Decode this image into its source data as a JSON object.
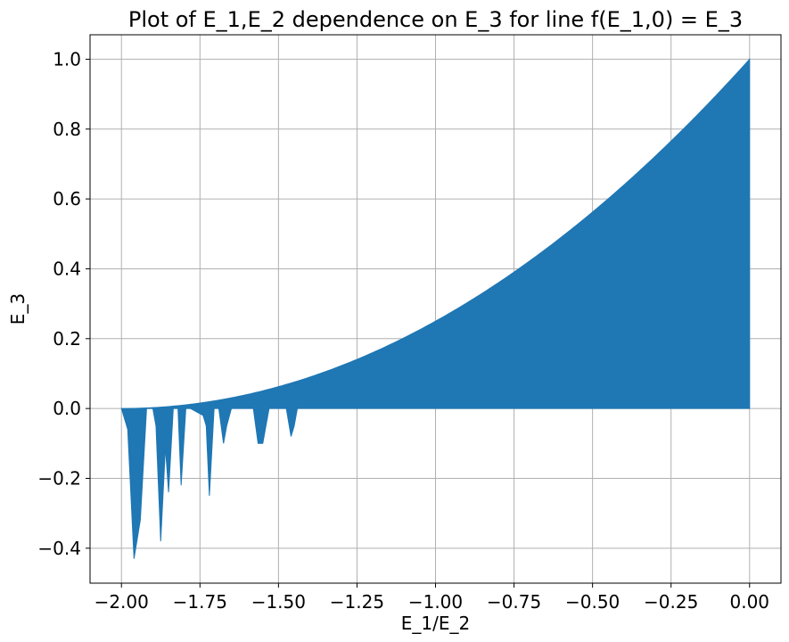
{
  "chart_data": {
    "type": "area",
    "title": "Plot of E_1,E_2 dependence on E_3 for line f(E_1,0) = E_3",
    "xlabel": "E_1/E_2",
    "ylabel": "E_3",
    "xlim": [
      -2.1,
      0.1
    ],
    "ylim": [
      -0.5,
      1.07
    ],
    "xticks": [
      -2.0,
      -1.75,
      -1.5,
      -1.25,
      -1.0,
      -0.75,
      -0.5,
      -0.25,
      0.0
    ],
    "xtick_labels": [
      "−2.00",
      "−1.75",
      "−1.50",
      "−1.25",
      "−1.00",
      "−0.75",
      "−0.50",
      "−0.25",
      "0.00"
    ],
    "yticks": [
      -0.4,
      -0.2,
      0.0,
      0.2,
      0.4,
      0.6,
      0.8,
      1.0
    ],
    "ytick_labels": [
      "−0.4",
      "−0.2",
      "0.0",
      "0.2",
      "0.4",
      "0.6",
      "0.8",
      "1.0"
    ],
    "grid": true,
    "color": "#1f77b4",
    "upper_curve": {
      "formula": "E_3 = (E_1/E_2 / 2 + 1)^2 over E_1/E_2 in [-2, 0]",
      "x": [
        -2.0,
        -1.75,
        -1.5,
        -1.25,
        -1.0,
        -0.75,
        -0.5,
        -0.25,
        0.0
      ],
      "y": [
        0.0,
        0.0156,
        0.0625,
        0.1406,
        0.25,
        0.3906,
        0.5625,
        0.7656,
        1.0
      ]
    },
    "lower_boundary": {
      "x": [
        -2.0,
        -1.98,
        -1.96,
        -1.94,
        -1.92,
        -1.9,
        -1.89,
        -1.875,
        -1.86,
        -1.85,
        -1.835,
        -1.82,
        -1.81,
        -1.795,
        -1.78,
        -1.74,
        -1.73,
        -1.72,
        -1.705,
        -1.69,
        -1.675,
        -1.665,
        -1.65,
        -1.58,
        -1.565,
        -1.55,
        -1.53,
        -1.475,
        -1.46,
        -1.45,
        -1.44,
        -1.0,
        0.0
      ],
      "y": [
        0.0,
        -0.06,
        -0.43,
        -0.32,
        0.0,
        0.0,
        -0.05,
        -0.38,
        -0.11,
        -0.24,
        0.0,
        0.0,
        -0.22,
        0.0,
        0.0,
        -0.02,
        -0.05,
        -0.25,
        0.0,
        0.0,
        -0.1,
        -0.05,
        0.0,
        0.0,
        -0.1,
        -0.1,
        0.0,
        0.0,
        -0.08,
        -0.05,
        0.0,
        0.0,
        0.0
      ]
    }
  }
}
